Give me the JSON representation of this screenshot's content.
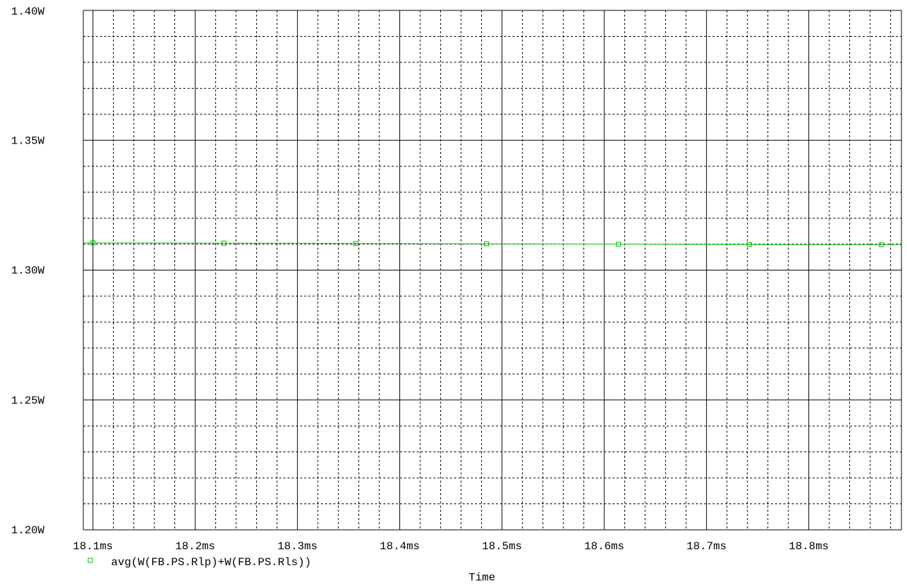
{
  "chart_data": {
    "type": "line",
    "xlabel": "Time",
    "ylabel": "",
    "x_unit_suffix": "ms",
    "y_unit_suffix": "W",
    "xlim": [
      18.0906,
      18.8906
    ],
    "ylim": [
      1.2,
      1.4
    ],
    "x_ticks": [
      "18.1ms",
      "18.2ms",
      "18.3ms",
      "18.4ms",
      "18.5ms",
      "18.6ms",
      "18.7ms",
      "18.8ms"
    ],
    "x_tick_values": [
      18.1,
      18.2,
      18.3,
      18.4,
      18.5,
      18.6,
      18.7,
      18.8
    ],
    "y_ticks": [
      "1.40W",
      "1.35W",
      "1.30W",
      "1.25W",
      "1.20W"
    ],
    "y_tick_values": [
      1.4,
      1.35,
      1.3,
      1.25,
      1.2
    ],
    "grid": true,
    "legend_placement": "bottom-left",
    "series": [
      {
        "name": "avg(W(FB.PS.Rlp)+W(FB.PS.Rls))",
        "color": "#00c000",
        "x": [
          18.0906,
          18.1,
          18.2,
          18.3,
          18.4,
          18.5,
          18.6,
          18.7,
          18.8,
          18.8906
        ],
        "values": [
          1.3105,
          1.3105,
          1.3104,
          1.3103,
          1.3102,
          1.3101,
          1.31,
          1.3099,
          1.3098,
          1.3098
        ],
        "markers_x": [
          18.1,
          18.228,
          18.357,
          18.485,
          18.614,
          18.742,
          18.871
        ]
      }
    ]
  }
}
